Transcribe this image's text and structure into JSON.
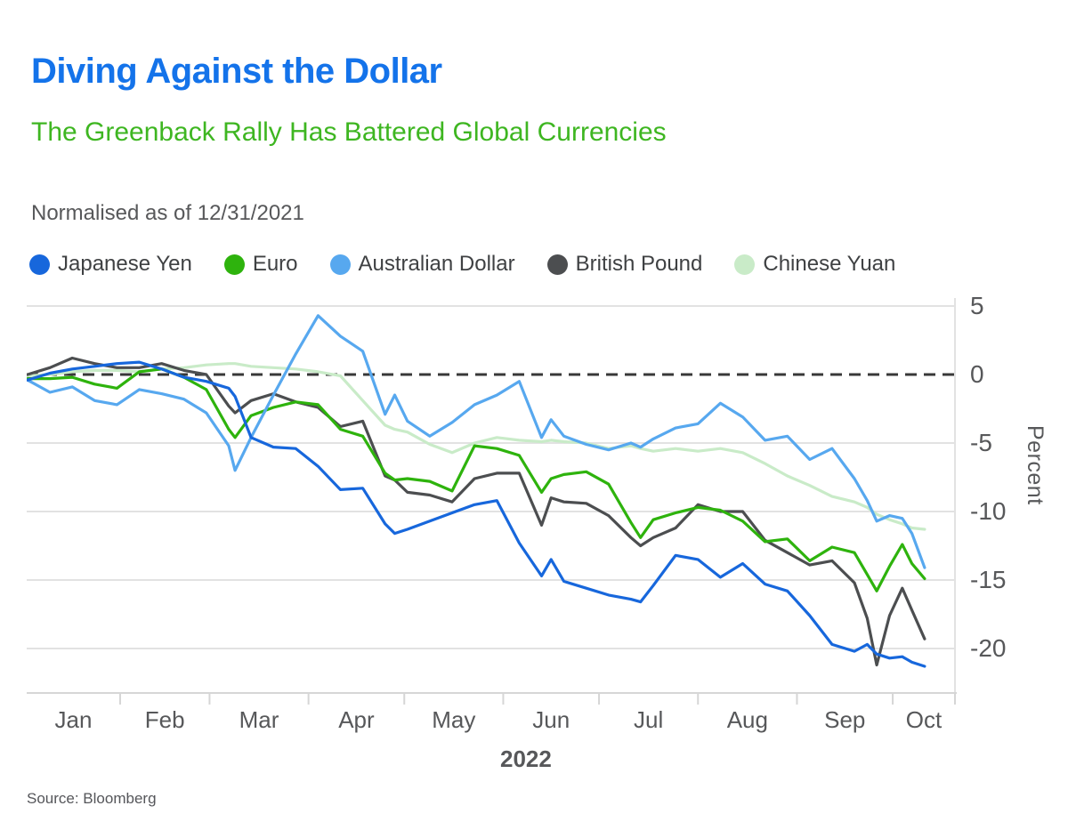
{
  "header": {
    "title": "Diving Against the Dollar",
    "subtitle": "The Greenback Rally Has Battered Global Currencies"
  },
  "meta": {
    "note": "Normalised as of 12/31/2021",
    "source": "Source: Bloomberg"
  },
  "colors": {
    "title_blue": "#1473EA",
    "subtitle_green": "#3EB621",
    "grid": "#E2E2E2",
    "axis": "#D6D6D6",
    "zero_line": "#383838",
    "text_gray": "#57585A"
  },
  "chart_data": {
    "type": "line",
    "title": "Diving Against the Dollar",
    "subtitle": "The Greenback Rally Has Battered Global Currencies",
    "note": "Normalised as of 12/31/2021",
    "xlabel": "2022",
    "ylabel": "Percent",
    "source": "Source: Bloomberg",
    "x_tick_labels": [
      "Jan",
      "Feb",
      "Mar",
      "Apr",
      "May",
      "Jun",
      "Jul",
      "Aug",
      "Sep",
      "Oct"
    ],
    "y_ticks": [
      5,
      0,
      -5,
      -10,
      -15,
      -20
    ],
    "ylim": [
      -23,
      6
    ],
    "grid": true,
    "zero_line_dashed": true,
    "legend_position": "top",
    "dates": [
      "Jan 3",
      "Jan 10",
      "Jan 17",
      "Jan 24",
      "Jan 31",
      "Feb 7",
      "Feb 14",
      "Feb 21",
      "Feb 28",
      "Mar 7",
      "Mar 9",
      "Mar 14",
      "Mar 21",
      "Mar 28",
      "Apr 4",
      "Apr 11",
      "Apr 18",
      "Apr 25",
      "Apr 28",
      "May 2",
      "May 9",
      "May 16",
      "May 23",
      "May 30",
      "Jun 6",
      "Jun 13",
      "Jun 16",
      "Jun 20",
      "Jun 27",
      "Jul 4",
      "Jul 11",
      "Jul 14",
      "Jul 18",
      "Jul 25",
      "Aug 1",
      "Aug 8",
      "Aug 15",
      "Aug 22",
      "Aug 29",
      "Sep 5",
      "Sep 12",
      "Sep 19",
      "Sep 23",
      "Sep 26",
      "Sep 30",
      "Oct 4",
      "Oct 7",
      "Oct 11"
    ],
    "series": [
      {
        "name": "Japanese Yen",
        "color": "#1767DC",
        "values": [
          -0.4,
          0.1,
          0.4,
          0.6,
          0.8,
          0.9,
          0.4,
          -0.2,
          -0.5,
          -1.0,
          -1.6,
          -4.6,
          -5.3,
          -5.4,
          -6.7,
          -8.4,
          -8.3,
          -10.9,
          -11.6,
          -11.3,
          -10.7,
          -10.1,
          -9.5,
          -9.2,
          -12.3,
          -14.7,
          -13.5,
          -15.1,
          -15.6,
          -16.1,
          -16.4,
          -16.6,
          -15.4,
          -13.2,
          -13.5,
          -14.8,
          -13.8,
          -15.3,
          -15.8,
          -17.6,
          -19.7,
          -20.2,
          -19.7,
          -20.4,
          -20.7,
          -20.6,
          -21.0,
          -21.3
        ]
      },
      {
        "name": "Euro",
        "color": "#2EB30D",
        "values": [
          -0.3,
          -0.3,
          -0.2,
          -0.7,
          -1.0,
          0.2,
          0.4,
          -0.2,
          -1.1,
          -4.0,
          -4.6,
          -3.0,
          -2.4,
          -2.0,
          -2.2,
          -4.0,
          -4.5,
          -7.2,
          -7.7,
          -7.6,
          -7.8,
          -8.5,
          -5.2,
          -5.4,
          -5.9,
          -8.6,
          -7.6,
          -7.3,
          -7.1,
          -8.0,
          -10.8,
          -11.9,
          -10.6,
          -10.1,
          -9.7,
          -9.9,
          -10.7,
          -12.2,
          -12.0,
          -13.6,
          -12.6,
          -13.0,
          -14.6,
          -15.8,
          -14.0,
          -12.4,
          -13.8,
          -14.9
        ]
      },
      {
        "name": "Australian Dollar",
        "color": "#57A8EF",
        "values": [
          -0.4,
          -1.3,
          -0.9,
          -1.9,
          -2.2,
          -1.1,
          -1.4,
          -1.8,
          -2.8,
          -5.2,
          -7.0,
          -4.6,
          -1.5,
          1.5,
          4.3,
          2.8,
          1.7,
          -2.9,
          -1.5,
          -3.4,
          -4.5,
          -3.5,
          -2.2,
          -1.5,
          -0.5,
          -4.6,
          -3.3,
          -4.5,
          -5.1,
          -5.5,
          -5.0,
          -5.3,
          -4.7,
          -3.9,
          -3.6,
          -2.1,
          -3.1,
          -4.8,
          -4.5,
          -6.2,
          -5.4,
          -7.6,
          -9.2,
          -10.7,
          -10.3,
          -10.5,
          -11.6,
          -14.1
        ]
      },
      {
        "name": "British Pound",
        "color": "#4C4E50",
        "values": [
          0.0,
          0.5,
          1.2,
          0.8,
          0.5,
          0.5,
          0.8,
          0.3,
          0.0,
          -2.3,
          -2.8,
          -1.9,
          -1.4,
          -2.0,
          -2.4,
          -3.8,
          -3.4,
          -7.4,
          -7.7,
          -8.6,
          -8.8,
          -9.3,
          -7.6,
          -7.2,
          -7.2,
          -11.0,
          -9.0,
          -9.3,
          -9.4,
          -10.3,
          -11.9,
          -12.5,
          -11.9,
          -11.2,
          -9.5,
          -10.0,
          -10.0,
          -12.1,
          -13.0,
          -13.9,
          -13.6,
          -15.2,
          -17.8,
          -21.2,
          -17.6,
          -15.6,
          -17.2,
          -19.3
        ]
      },
      {
        "name": "Chinese Yuan",
        "color": "#C9EBC8",
        "values": [
          -0.1,
          0.0,
          0.2,
          0.3,
          0.3,
          0.2,
          0.4,
          0.5,
          0.7,
          0.8,
          0.8,
          0.6,
          0.5,
          0.4,
          0.2,
          -0.1,
          -1.9,
          -3.7,
          -4.0,
          -4.2,
          -5.1,
          -5.7,
          -5.0,
          -4.6,
          -4.8,
          -4.9,
          -4.8,
          -4.9,
          -5.0,
          -5.4,
          -5.2,
          -5.4,
          -5.6,
          -5.4,
          -5.6,
          -5.4,
          -5.7,
          -6.5,
          -7.4,
          -8.1,
          -8.9,
          -9.3,
          -9.7,
          -10.2,
          -10.6,
          -10.9,
          -11.2,
          -11.3
        ]
      }
    ]
  }
}
